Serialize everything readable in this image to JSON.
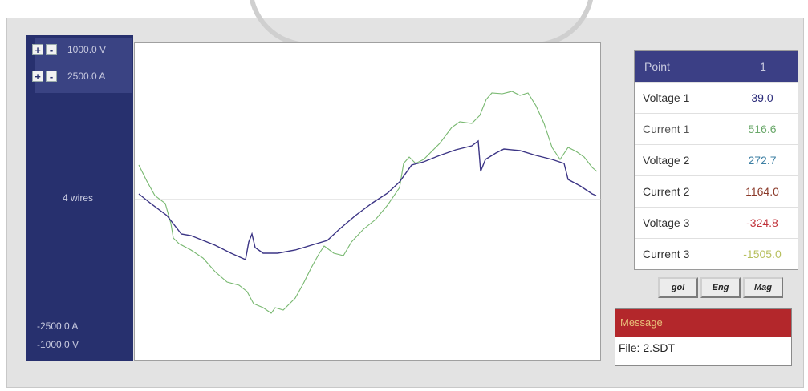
{
  "scales": [
    {
      "label": "1000.0 V"
    },
    {
      "label": "2500.0 A"
    }
  ],
  "scale_buttons": {
    "plus": "+",
    "minus": "-"
  },
  "wires_label": "4 wires",
  "bottom_labels": [
    "-2500.0 A",
    "-1000.0 V"
  ],
  "table": {
    "header_label": "Point",
    "header_value": "1",
    "rows": [
      {
        "label": "Voltage 1",
        "value": "39.0",
        "color": "#2b2b7a"
      },
      {
        "label": "Current 1",
        "value": "516.6",
        "color": "#6aa86a"
      },
      {
        "label": "Voltage 2",
        "value": "272.7",
        "color": "#3d7fa3"
      },
      {
        "label": "Current 2",
        "value": "1164.0",
        "color": "#8b3a2a"
      },
      {
        "label": "Voltage 3",
        "value": "-324.8",
        "color": "#c0323a"
      },
      {
        "label": "Current 3",
        "value": "-1505.0",
        "color": "#b8c060"
      }
    ]
  },
  "buttons": [
    "gol",
    "Eng",
    "Mag"
  ],
  "message": {
    "title": "Message",
    "text": "File:  2.SDT"
  },
  "colors": {
    "voltage_trace": "#3c3585",
    "current_trace": "#78b870",
    "panel": "#27306e"
  }
}
